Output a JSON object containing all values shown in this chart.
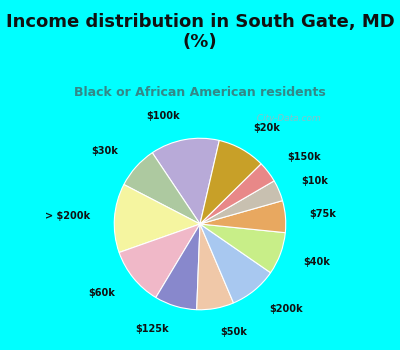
{
  "title": "Income distribution in South Gate, MD\n(%)",
  "subtitle": "Black or African American residents",
  "labels": [
    "$100k",
    "$30k",
    "> $200k",
    "$60k",
    "$125k",
    "$50k",
    "$200k",
    "$40k",
    "$75k",
    "$10k",
    "$150k",
    "$20k"
  ],
  "values": [
    13,
    8,
    13,
    11,
    8,
    7,
    9,
    8,
    6,
    4,
    4,
    9
  ],
  "colors": [
    "#b8aad8",
    "#adc9a0",
    "#f5f5a0",
    "#f0b8c8",
    "#8888cc",
    "#f0c8a8",
    "#a8c8f0",
    "#c8ee88",
    "#e8a860",
    "#c8c0b0",
    "#e88888",
    "#c8a028"
  ],
  "bg_color": "#00ffff",
  "chart_bg_top": "#e8f8f8",
  "chart_bg_bottom": "#c8e8d0",
  "watermark": "  City-Data.com",
  "title_color": "#111111",
  "subtitle_color": "#338888",
  "startangle": 77,
  "title_fontsize": 13,
  "subtitle_fontsize": 9,
  "label_fontsize": 7,
  "border_color": "#00cccc"
}
